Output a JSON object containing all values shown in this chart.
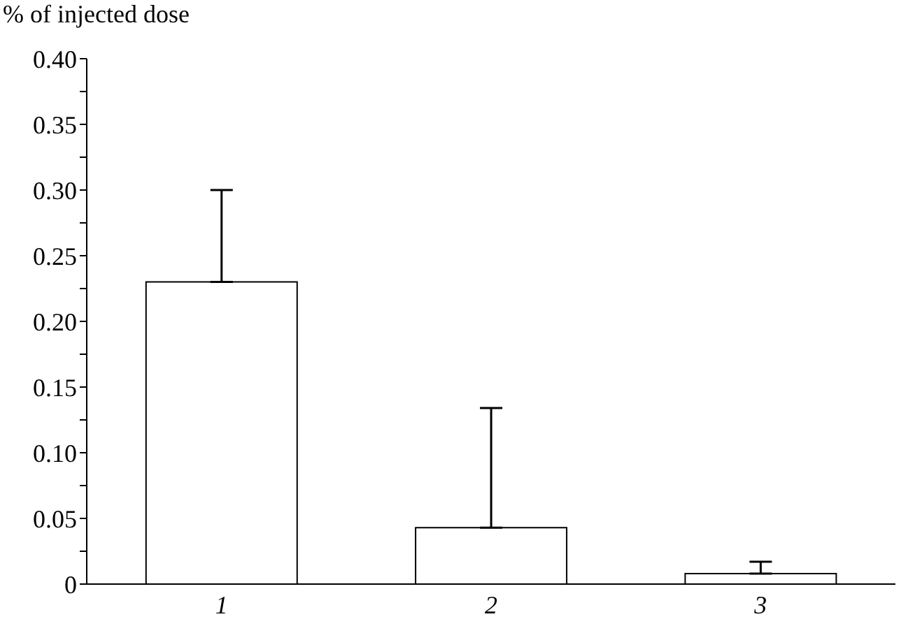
{
  "chart_data": {
    "type": "bar",
    "ylabel": "% of injected dose",
    "categories": [
      "1",
      "2",
      "3"
    ],
    "values": [
      0.23,
      0.043,
      0.008
    ],
    "errors": [
      [
        0.23,
        0.3
      ],
      [
        0.043,
        0.134
      ],
      [
        0.008,
        0.017
      ]
    ],
    "color": "#ffffff",
    "ylim": [
      0,
      0.4
    ],
    "yticks": [
      0,
      {
        "value": 0.025,
        "label": null
      },
      0.05,
      {
        "value": 0.075,
        "label": null
      },
      {
        "value": 0.1,
        "label": "0.10"
      },
      {
        "value": 0.125,
        "label": null
      },
      0.15,
      {
        "value": 0.175,
        "label": null
      },
      {
        "value": 0.2,
        "label": "0.20"
      },
      {
        "value": 0.225,
        "label": null
      },
      0.25,
      {
        "value": 0.275,
        "label": null
      },
      {
        "value": 0.3,
        "label": "0.30"
      },
      {
        "value": 0.325,
        "label": null
      },
      0.35,
      {
        "value": 0.375,
        "label": null
      },
      {
        "value": 0.4,
        "label": "0.40"
      }
    ],
    "grid": false,
    "legend": false
  }
}
